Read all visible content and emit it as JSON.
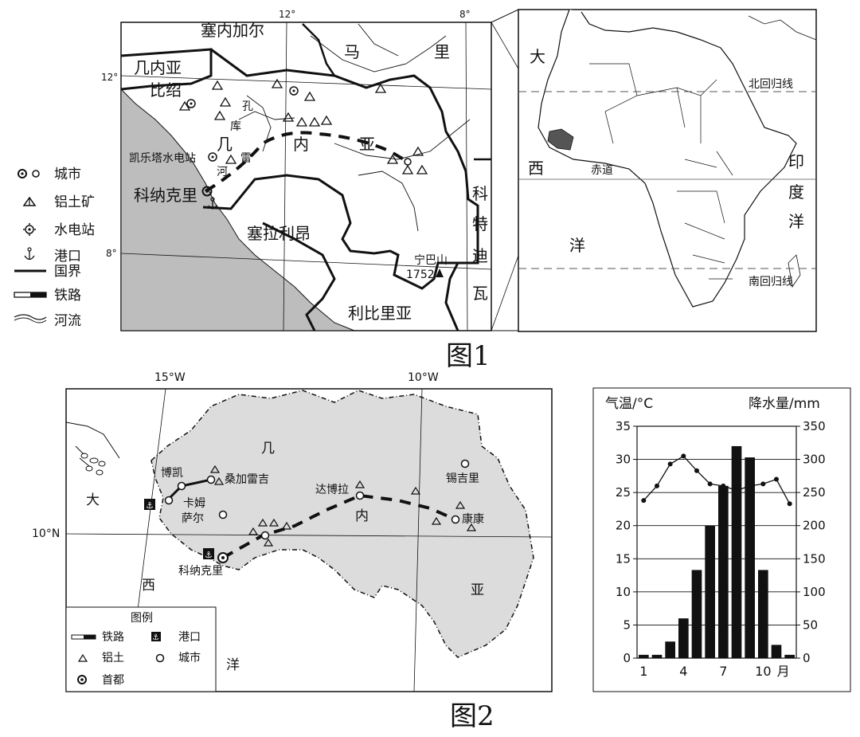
{
  "fig1": {
    "caption": "图1",
    "legend": [
      "城市",
      "铝土矿",
      "水电站",
      "港口",
      "国界",
      "铁路",
      "河流"
    ],
    "lat_labels": [
      "12°",
      "8°"
    ],
    "lon_labels": [
      "12°",
      "8°"
    ],
    "countries": [
      "塞内加尔",
      "马",
      "里",
      "几内亚",
      "比绍",
      "几",
      "内",
      "亚",
      "塞拉利昂",
      "利比里亚",
      "科",
      "特",
      "迪",
      "瓦"
    ],
    "rivers": [
      "孔",
      "库",
      "雷",
      "河"
    ],
    "places": [
      "凯乐塔水电站",
      "科纳克里"
    ],
    "peak_name": "宁巴山",
    "peak_elev": "1752",
    "africa_labels": [
      "大",
      "西",
      "洋",
      "印",
      "度",
      "洋",
      "北回归线",
      "赤道",
      "南回归线"
    ]
  },
  "fig2": {
    "caption": "图2",
    "lon_labels": [
      "15°W",
      "10°W"
    ],
    "lat_label": "10°N",
    "country_chars": [
      "几",
      "内",
      "亚"
    ],
    "ocean_chars": [
      "大",
      "西",
      "洋"
    ],
    "cities": [
      "博凯",
      "桑加雷吉",
      "卡姆",
      "萨尔",
      "达博拉",
      "锡吉里",
      "康康",
      "科纳克里"
    ],
    "legend_title": "图例",
    "legend": [
      "铁路",
      "港口",
      "铝土",
      "城市",
      "首都"
    ]
  },
  "chart_data": {
    "type": "bar",
    "title": "",
    "left_axis_label": "气温/°C",
    "right_axis_label": "降水量/mm",
    "left_ticks": [
      "35",
      "30",
      "25",
      "20",
      "15",
      "10",
      "5",
      "0"
    ],
    "right_ticks": [
      "350",
      "300",
      "250",
      "200",
      "150",
      "100",
      "50",
      "0"
    ],
    "x_ticks": [
      "1",
      "4",
      "7",
      "10"
    ],
    "x_unit": "月",
    "ylim_temp": [
      0,
      35
    ],
    "ylim_precip": [
      0,
      350
    ],
    "months": [
      1,
      2,
      3,
      4,
      5,
      6,
      7,
      8,
      9,
      10,
      11,
      12
    ],
    "precipitation": [
      5,
      5,
      25,
      60,
      133,
      200,
      260,
      320,
      303,
      133,
      20,
      5
    ],
    "temperature": [
      23.8,
      26.0,
      29.3,
      30.5,
      28.3,
      26.3,
      26.0,
      25.3,
      26.0,
      26.3,
      27.0,
      23.3
    ]
  }
}
